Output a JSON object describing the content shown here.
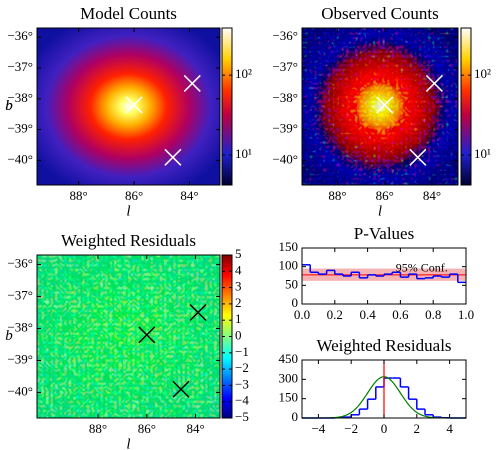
{
  "chart_data": [
    {
      "type": "heatmap",
      "title": "Model Counts",
      "xlabel": "l",
      "ylabel": "b",
      "xlim": [
        89.5,
        82.9
      ],
      "ylim": [
        -40.8,
        -35.7
      ],
      "xticks": [
        {
          "value": 88,
          "label": "88°"
        },
        {
          "value": 86,
          "label": "86°"
        },
        {
          "value": 84,
          "label": "84°"
        }
      ],
      "yticks": [
        {
          "value": -36,
          "label": "−36°"
        },
        {
          "value": -37,
          "label": "−37°"
        },
        {
          "value": -38,
          "label": "−38°"
        },
        {
          "value": -39,
          "label": "−39°"
        },
        {
          "value": -40,
          "label": "−40°"
        }
      ],
      "colormap": "heat",
      "noise": false,
      "colorbar": {
        "scale": "log",
        "lim": [
          4.2,
          390
        ],
        "ticks": [
          {
            "value": 10,
            "label": "10¹"
          },
          {
            "value": 100,
            "label": "10²"
          }
        ]
      },
      "markers": {
        "l": [
          86.0,
          83.9,
          84.6
        ],
        "b": [
          -38.2,
          -37.5,
          -39.9
        ]
      }
    },
    {
      "type": "heatmap",
      "title": "Observed Counts",
      "xlabel": "l",
      "ylabel": "b",
      "xlim": [
        89.5,
        82.9
      ],
      "ylim": [
        -40.8,
        -35.7
      ],
      "xticks": [
        {
          "value": 88,
          "label": "88°"
        },
        {
          "value": 86,
          "label": "86°"
        },
        {
          "value": 84,
          "label": "84°"
        }
      ],
      "yticks": [
        {
          "value": -36,
          "label": "−36°"
        },
        {
          "value": -37,
          "label": "−37°"
        },
        {
          "value": -38,
          "label": "−38°"
        },
        {
          "value": -39,
          "label": "−39°"
        },
        {
          "value": -40,
          "label": "−40°"
        }
      ],
      "colormap": "heat",
      "noise": true,
      "colorbar": {
        "scale": "log",
        "lim": [
          4.2,
          390
        ],
        "ticks": [
          {
            "value": 10,
            "label": "10¹"
          },
          {
            "value": 100,
            "label": "10²"
          }
        ]
      },
      "markers": {
        "l": [
          86.0,
          83.9,
          84.6
        ],
        "b": [
          -38.2,
          -37.5,
          -39.9
        ]
      }
    },
    {
      "type": "heatmap",
      "title": "Weighted Residuals",
      "xlabel": "l",
      "ylabel": "b",
      "xlim": [
        90.5,
        83.0
      ],
      "ylim": [
        -40.8,
        -35.7
      ],
      "xticks": [
        {
          "value": 88,
          "label": "88°"
        },
        {
          "value": 86,
          "label": "86°"
        },
        {
          "value": 84,
          "label": "84°"
        }
      ],
      "yticks": [
        {
          "value": -36,
          "label": "−36°"
        },
        {
          "value": -37,
          "label": "−37°"
        },
        {
          "value": -38,
          "label": "−38°"
        },
        {
          "value": -39,
          "label": "−39°"
        },
        {
          "value": -40,
          "label": "−40°"
        }
      ],
      "colormap": "jet",
      "noise": true,
      "colorbar": {
        "scale": "linear",
        "lim": [
          -5,
          5
        ],
        "ticks": [
          {
            "value": -5,
            "label": "−5"
          },
          {
            "value": -4,
            "label": "−4"
          },
          {
            "value": -3,
            "label": "−3"
          },
          {
            "value": -2,
            "label": "−2"
          },
          {
            "value": -1,
            "label": "−1"
          },
          0,
          1,
          2,
          3,
          4,
          5
        ]
      },
      "markers": {
        "l": [
          86.0,
          83.9,
          84.6
        ],
        "b": [
          -38.2,
          -37.5,
          -39.9
        ]
      }
    },
    {
      "type": "histogram",
      "title": "P-Values",
      "color": "#0000ff",
      "bins": [
        0,
        0.05,
        0.1,
        0.15,
        0.2,
        0.25,
        0.3,
        0.35,
        0.4,
        0.45,
        0.5,
        0.55,
        0.6,
        0.65,
        0.7,
        0.75,
        0.8,
        0.85,
        0.9,
        0.95,
        1.0
      ],
      "values": [
        105,
        85,
        80,
        90,
        80,
        75,
        85,
        70,
        78,
        75,
        80,
        85,
        72,
        80,
        68,
        70,
        75,
        72,
        80,
        58
      ],
      "xlim": [
        0,
        1
      ],
      "ylim": [
        0,
        150
      ],
      "xticks": [
        {
          "value": 0,
          "label": "0.0"
        },
        0.2,
        0.4,
        0.6,
        0.8,
        {
          "value": 1,
          "label": "1.0"
        }
      ],
      "yticks": [
        0,
        50,
        100,
        150
      ],
      "band": [
        62,
        95
      ],
      "band_color": "#f4a0a0",
      "expected": 78,
      "line_color": "#ff0000",
      "annotation": {
        "text": "95% Conf.",
        "x": 0.73,
        "y": 95
      }
    },
    {
      "type": "histogram",
      "title": "Weighted Residuals",
      "color": "#0000ff",
      "bins": [
        -5,
        -4.5,
        -4,
        -3.5,
        -3,
        -2.5,
        -2,
        -1.5,
        -1,
        -0.5,
        0,
        0.5,
        1,
        1.5,
        2,
        2.5,
        3,
        3.5,
        4,
        4.5,
        5
      ],
      "values": [
        0,
        0,
        0,
        0,
        2,
        7,
        25,
        69,
        146,
        241,
        310,
        310,
        241,
        146,
        69,
        25,
        7,
        2,
        0,
        0
      ],
      "xlim": [
        -5,
        5
      ],
      "ylim": [
        0,
        450
      ],
      "xticks": [
        {
          "value": -4,
          "label": "−4"
        },
        {
          "value": -2,
          "label": "−2"
        },
        0,
        2,
        4
      ],
      "yticks": [
        0,
        150,
        300,
        450
      ],
      "gaussian": {
        "amplitude": 320,
        "mean": 0,
        "sigma": 1
      },
      "gaussian_color": "#008000",
      "vline": 0,
      "line_color": "#ff0000"
    }
  ]
}
